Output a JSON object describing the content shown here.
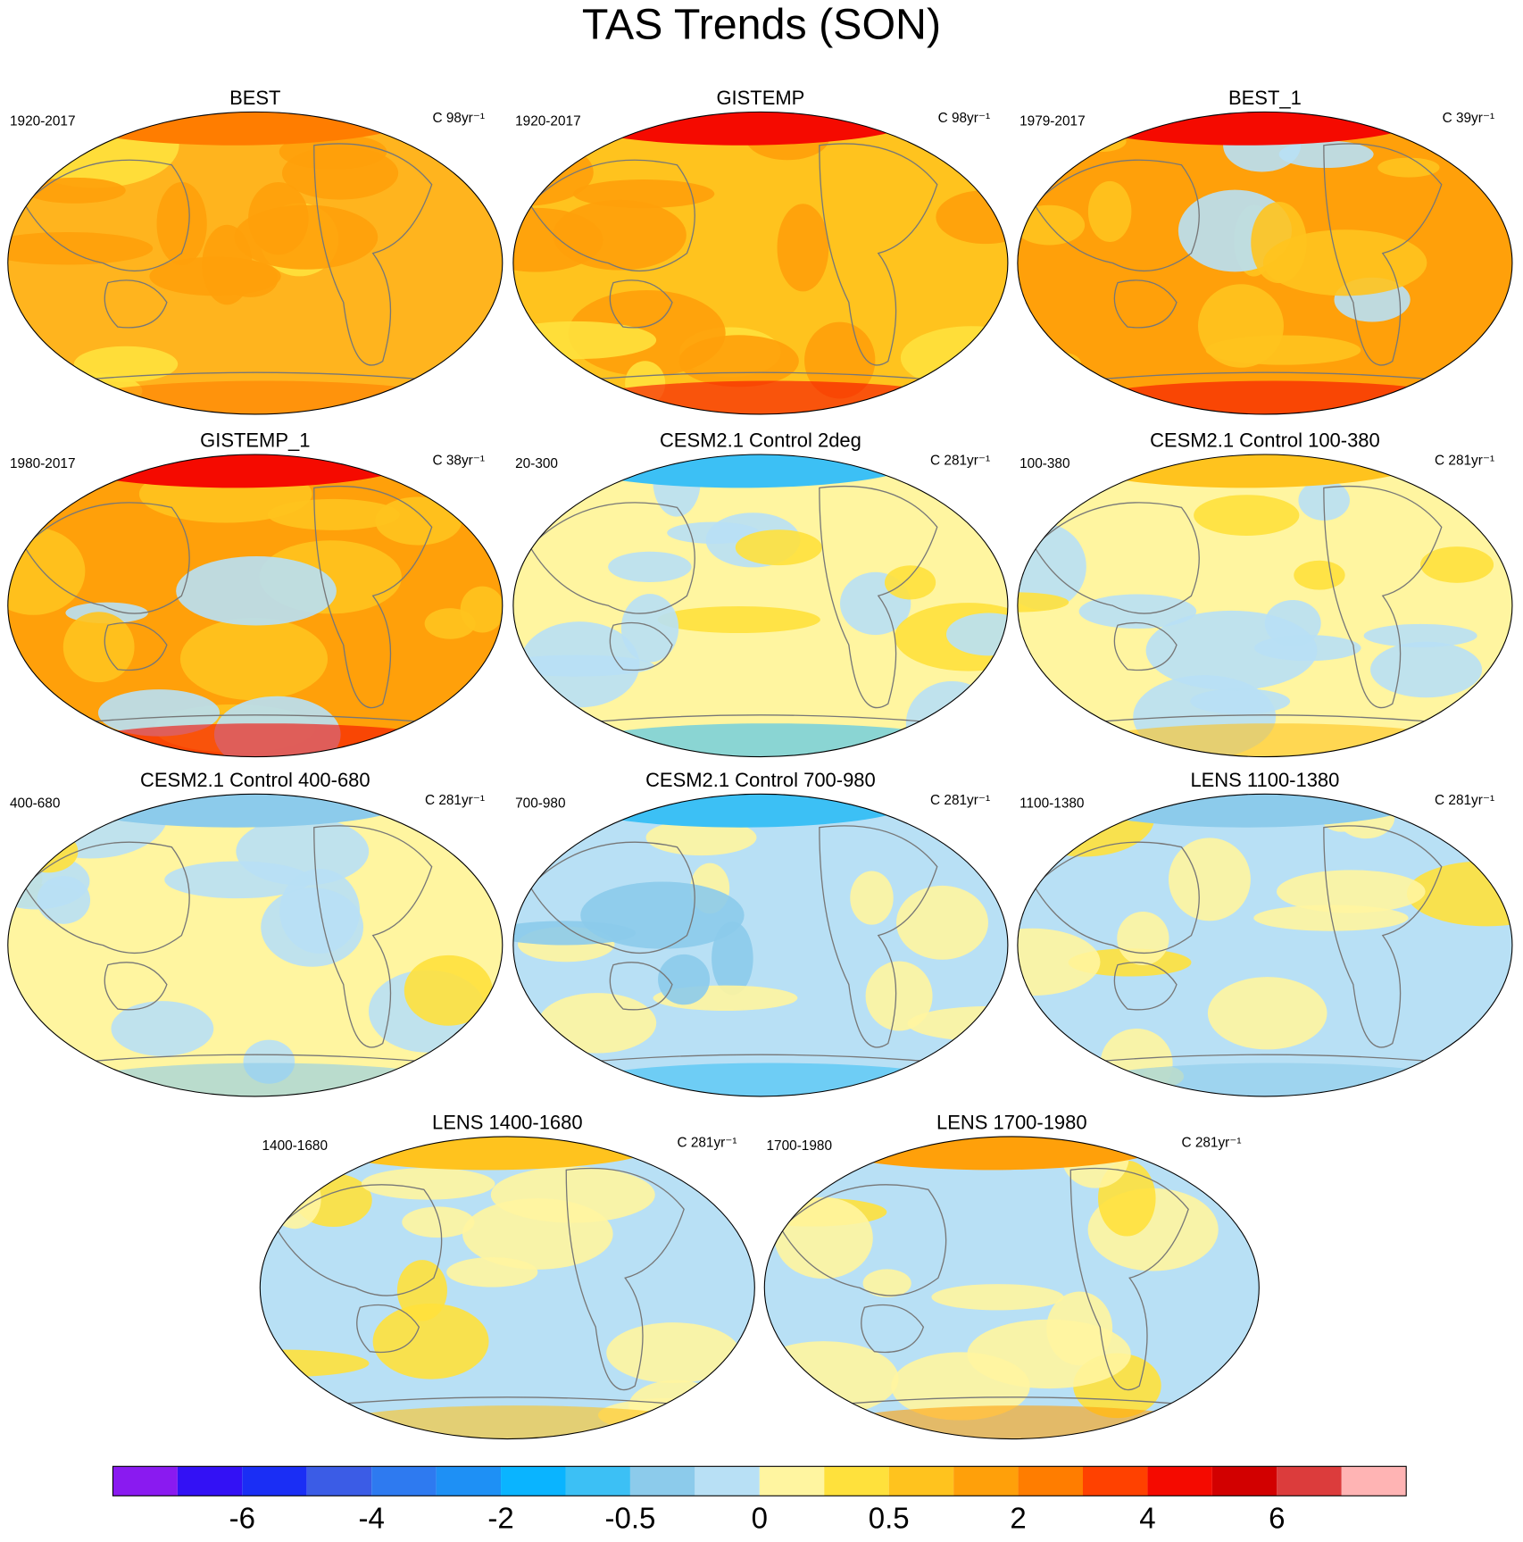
{
  "title": "TAS Trends (SON)",
  "panels": [
    {
      "title": "BEST",
      "period": "1920-2017",
      "units": "C 98yr⁻¹",
      "color": "#ffb41e",
      "accent": "#ffa00a",
      "spot": "#ffe13c",
      "pole": "#ff7d00"
    },
    {
      "title": "GISTEMP",
      "period": "1920-2017",
      "units": "C 98yr⁻¹",
      "color": "#ffc31e",
      "accent": "#ffa00a",
      "spot": "#ffe13c",
      "pole": "#f50a00"
    },
    {
      "title": "BEST_1",
      "period": "1979-2017",
      "units": "C 39yr⁻¹",
      "color": "#ffa00a",
      "accent": "#ffc31e",
      "spot": "#b8e0f5",
      "pole": "#f50a00"
    },
    {
      "title": "GISTEMP_1",
      "period": "1980-2017",
      "units": "C 38yr⁻¹",
      "color": "#ffa00a",
      "accent": "#ffc31e",
      "spot": "#b8e0f5",
      "pole": "#f50a00"
    },
    {
      "title": "CESM2.1 Control 2deg",
      "period": "20-300",
      "units": "C 281yr⁻¹",
      "color": "#fff5a0",
      "accent": "#b8e0f5",
      "spot": "#ffe13c",
      "pole": "#3cc0f5"
    },
    {
      "title": "CESM2.1 Control 100-380",
      "period": "100-380",
      "units": "C 281yr⁻¹",
      "color": "#fff5a0",
      "accent": "#b8e0f5",
      "spot": "#ffe13c",
      "pole": "#ffc31e"
    },
    {
      "title": "CESM2.1 Control 400-680",
      "period": "400-680",
      "units": "C 281yr⁻¹",
      "color": "#fff5a0",
      "accent": "#b8e0f5",
      "spot": "#ffe13c",
      "pole": "#8ccbeb"
    },
    {
      "title": "CESM2.1 Control 700-980",
      "period": "700-980",
      "units": "C 281yr⁻¹",
      "color": "#b8e0f5",
      "accent": "#fff5a0",
      "spot": "#8ccbeb",
      "pole": "#3cc0f5"
    },
    {
      "title": "LENS 1100-1380",
      "period": "1100-1380",
      "units": "C 281yr⁻¹",
      "color": "#b8e0f5",
      "accent": "#fff5a0",
      "spot": "#ffe13c",
      "pole": "#8ccbeb"
    },
    {
      "title": "LENS 1400-1680",
      "period": "1400-1680",
      "units": "C 281yr⁻¹",
      "color": "#b8e0f5",
      "accent": "#fff5a0",
      "spot": "#ffe13c",
      "pole": "#ffc31e"
    },
    {
      "title": "LENS 1700-1980",
      "period": "1700-1980",
      "units": "C 281yr⁻¹",
      "color": "#b8e0f5",
      "accent": "#fff5a0",
      "spot": "#ffe13c",
      "pole": "#ffa00a"
    }
  ],
  "colorbar": {
    "colors": [
      "#8a1af0",
      "#3311f5",
      "#1a2ef5",
      "#3b5ce6",
      "#2e7af0",
      "#1e90f5",
      "#0ab4ff",
      "#3cc0f5",
      "#8ccbeb",
      "#b8e0f5",
      "#fff5a0",
      "#ffe13c",
      "#ffc31e",
      "#ffa00a",
      "#ff7d00",
      "#ff4100",
      "#f50a00",
      "#d20000",
      "#dc3c3c",
      "#ffb4b4"
    ],
    "labels": [
      -6,
      -4,
      -2,
      -0.5,
      0,
      0.5,
      2,
      4,
      6
    ]
  }
}
